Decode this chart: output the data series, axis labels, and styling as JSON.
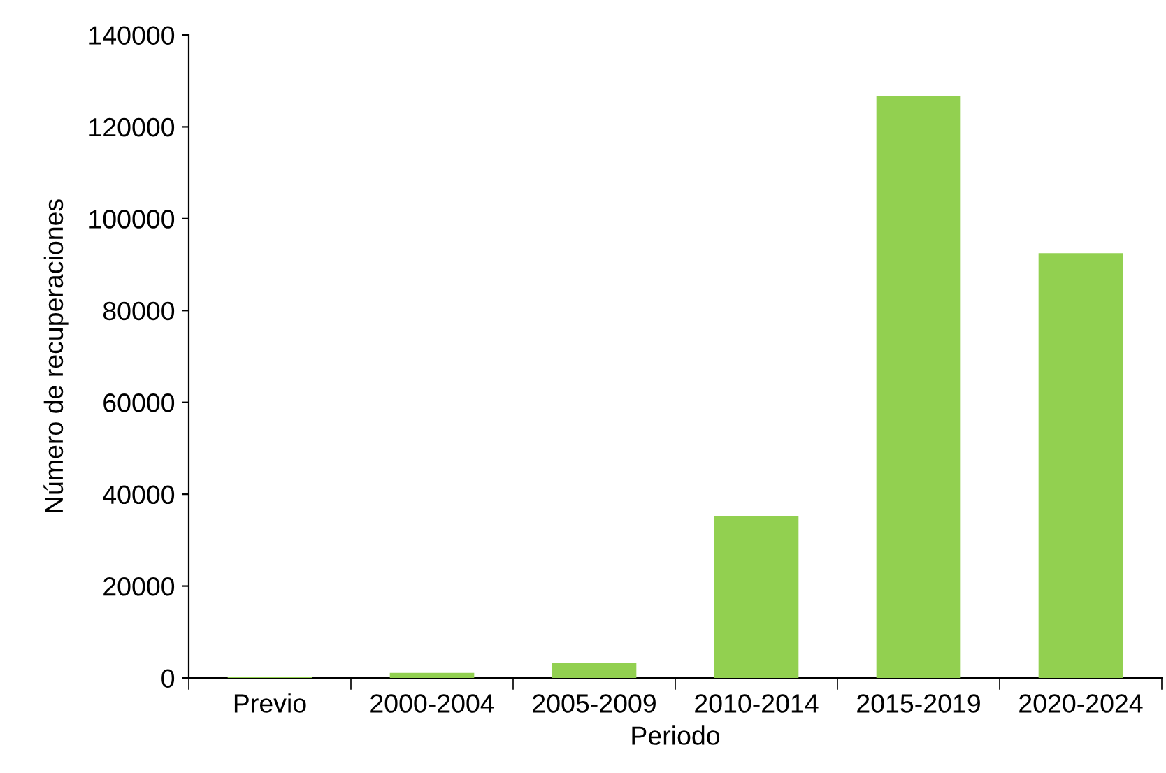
{
  "chart_data": {
    "type": "bar",
    "xlabel": "Periodo",
    "ylabel": "Número de recuperaciones",
    "categories": [
      "Previo",
      "2000-2004",
      "2005-2009",
      "2010-2014",
      "2015-2019",
      "2020-2024"
    ],
    "values": [
      300,
      1100,
      3300,
      35300,
      126600,
      92500
    ],
    "color": "#92d050",
    "ylim": [
      0,
      140000
    ],
    "yticks": [
      0,
      20000,
      40000,
      60000,
      80000,
      100000,
      120000,
      140000
    ],
    "grid": false,
    "legend": false
  }
}
